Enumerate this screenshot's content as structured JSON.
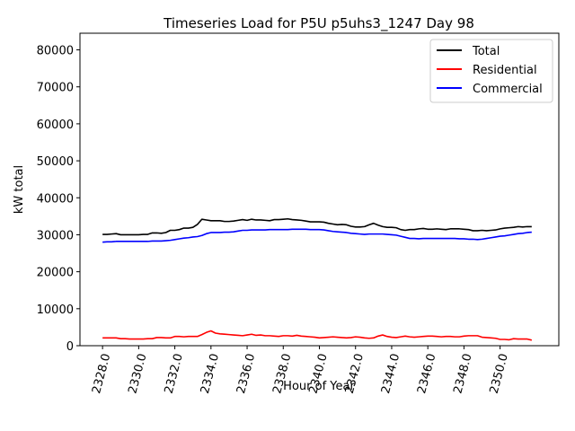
{
  "chart_data": {
    "type": "line",
    "title": "Timeseries Load for P5U p5uhs3_1247  Day 98",
    "xlabel": "Hour of Year",
    "ylabel": "kW total",
    "xlim": [
      2326.75,
      2353.25
    ],
    "ylim": [
      0,
      84500
    ],
    "x_ticks": [
      2328,
      2330,
      2332,
      2334,
      2336,
      2338,
      2340,
      2342,
      2344,
      2346,
      2348,
      2350
    ],
    "x_tick_labels": [
      "2328.0",
      "2330.0",
      "2332.0",
      "2334.0",
      "2336.0",
      "2338.0",
      "2340.0",
      "2342.0",
      "2344.0",
      "2346.0",
      "2348.0",
      "2350.0"
    ],
    "y_ticks": [
      0,
      10000,
      20000,
      30000,
      40000,
      50000,
      60000,
      70000,
      80000
    ],
    "y_tick_labels": [
      "0",
      "10000",
      "20000",
      "30000",
      "40000",
      "50000",
      "60000",
      "70000",
      "80000"
    ],
    "legend_position": "top-right",
    "grid": false,
    "x": [
      2328.0,
      2328.25,
      2328.5,
      2328.75,
      2329.0,
      2329.25,
      2329.5,
      2329.75,
      2330.0,
      2330.25,
      2330.5,
      2330.75,
      2331.0,
      2331.25,
      2331.5,
      2331.75,
      2332.0,
      2332.25,
      2332.5,
      2332.75,
      2333.0,
      2333.25,
      2333.5,
      2333.75,
      2334.0,
      2334.25,
      2334.5,
      2334.75,
      2335.0,
      2335.25,
      2335.5,
      2335.75,
      2336.0,
      2336.25,
      2336.5,
      2336.75,
      2337.0,
      2337.25,
      2337.5,
      2337.75,
      2338.0,
      2338.25,
      2338.5,
      2338.75,
      2339.0,
      2339.25,
      2339.5,
      2339.75,
      2340.0,
      2340.25,
      2340.5,
      2340.75,
      2341.0,
      2341.25,
      2341.5,
      2341.75,
      2342.0,
      2342.25,
      2342.5,
      2342.75,
      2343.0,
      2343.25,
      2343.5,
      2343.75,
      2344.0,
      2344.25,
      2344.5,
      2344.75,
      2345.0,
      2345.25,
      2345.5,
      2345.75,
      2346.0,
      2346.25,
      2346.5,
      2346.75,
      2347.0,
      2347.25,
      2347.5,
      2347.75,
      2348.0,
      2348.25,
      2348.5,
      2348.75,
      2349.0,
      2349.25,
      2349.5,
      2349.75,
      2350.0,
      2350.25,
      2350.5,
      2350.75,
      2351.0,
      2351.25,
      2351.5,
      2351.75
    ],
    "series": [
      {
        "name": "Total",
        "color": "#000000",
        "values": [
          30100,
          30100,
          30200,
          30300,
          30000,
          30000,
          30000,
          30000,
          30000,
          30100,
          30100,
          30500,
          30500,
          30400,
          30600,
          31200,
          31200,
          31400,
          31800,
          31800,
          32000,
          32800,
          34200,
          34000,
          33800,
          33800,
          33800,
          33600,
          33600,
          33700,
          33900,
          34100,
          33900,
          34200,
          34000,
          34000,
          33900,
          33800,
          34100,
          34100,
          34200,
          34300,
          34100,
          34000,
          33900,
          33700,
          33500,
          33500,
          33500,
          33400,
          33100,
          32900,
          32700,
          32800,
          32700,
          32300,
          32100,
          32100,
          32200,
          32700,
          33100,
          32600,
          32200,
          32000,
          32000,
          31900,
          31400,
          31200,
          31400,
          31400,
          31600,
          31700,
          31500,
          31500,
          31600,
          31500,
          31400,
          31600,
          31600,
          31600,
          31500,
          31400,
          31100,
          31100,
          31200,
          31100,
          31200,
          31300,
          31600,
          31800,
          31900,
          32000,
          32200,
          32100,
          32200,
          32200
        ]
      },
      {
        "name": "Residential",
        "color": "#ff0000",
        "values": [
          2100,
          2100,
          2100,
          2100,
          1900,
          1900,
          1800,
          1800,
          1800,
          1800,
          1900,
          1900,
          2200,
          2200,
          2100,
          2100,
          2500,
          2500,
          2400,
          2500,
          2500,
          2500,
          3000,
          3600,
          4000,
          3400,
          3200,
          3100,
          3000,
          2900,
          2800,
          2700,
          2900,
          3100,
          2800,
          2900,
          2700,
          2700,
          2600,
          2500,
          2700,
          2700,
          2600,
          2800,
          2600,
          2500,
          2400,
          2300,
          2100,
          2200,
          2300,
          2400,
          2300,
          2200,
          2100,
          2200,
          2400,
          2300,
          2100,
          2000,
          2100,
          2600,
          2900,
          2500,
          2300,
          2200,
          2400,
          2600,
          2400,
          2300,
          2400,
          2500,
          2600,
          2600,
          2500,
          2400,
          2500,
          2500,
          2400,
          2400,
          2600,
          2700,
          2700,
          2700,
          2300,
          2200,
          2100,
          2000,
          1700,
          1700,
          1600,
          1900,
          1800,
          1800,
          1800,
          1500
        ]
      },
      {
        "name": "Commercial",
        "color": "#0000ff",
        "values": [
          28000,
          28100,
          28100,
          28200,
          28200,
          28200,
          28200,
          28200,
          28200,
          28200,
          28200,
          28300,
          28300,
          28300,
          28400,
          28500,
          28700,
          28900,
          29100,
          29200,
          29400,
          29500,
          29800,
          30300,
          30600,
          30600,
          30600,
          30700,
          30700,
          30800,
          31000,
          31200,
          31200,
          31300,
          31300,
          31300,
          31300,
          31400,
          31400,
          31400,
          31400,
          31400,
          31500,
          31500,
          31500,
          31500,
          31400,
          31400,
          31400,
          31300,
          31100,
          30900,
          30800,
          30700,
          30600,
          30400,
          30300,
          30200,
          30100,
          30200,
          30200,
          30200,
          30200,
          30100,
          30000,
          29900,
          29600,
          29300,
          29000,
          29000,
          28900,
          29000,
          29000,
          29000,
          29000,
          29000,
          29000,
          29000,
          29000,
          28900,
          28900,
          28800,
          28800,
          28700,
          28800,
          29000,
          29200,
          29400,
          29600,
          29700,
          29900,
          30100,
          30300,
          30400,
          30600,
          30700
        ]
      }
    ]
  }
}
